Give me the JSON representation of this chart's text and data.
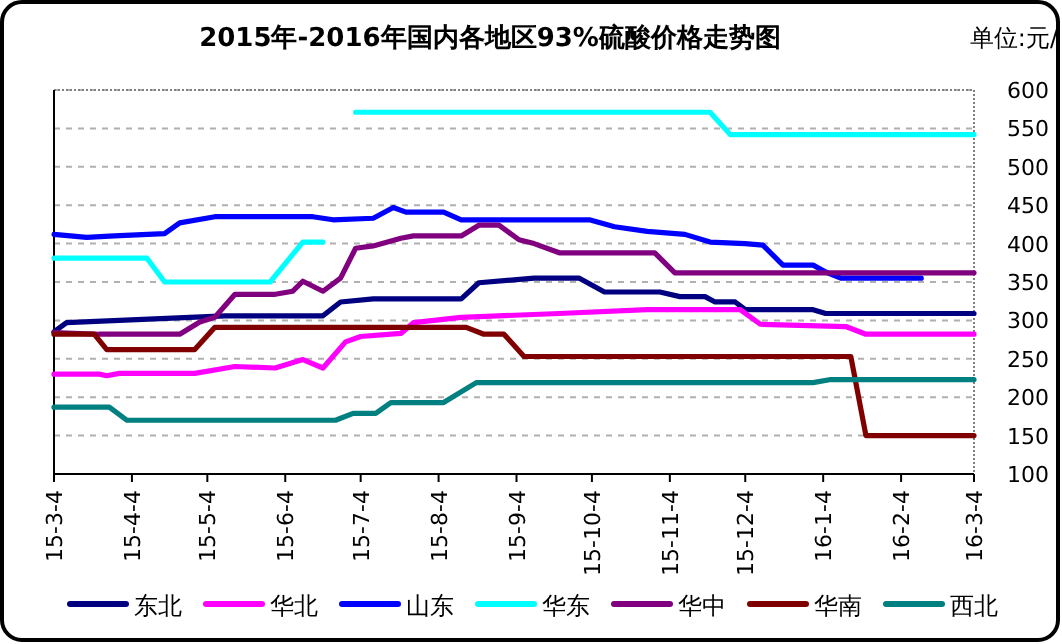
{
  "chart_data": {
    "type": "line",
    "title": "2015年-2016年国内各地区93%硫酸价格走势图",
    "annotations": [
      "单位:元/"
    ],
    "ylim": [
      100,
      600
    ],
    "yticks": [
      100,
      150,
      200,
      250,
      300,
      350,
      400,
      450,
      500,
      550,
      600
    ],
    "xlim": [
      "2015-03-04",
      "2016-03-04"
    ],
    "xticks": [
      {
        "value": "2015-03-04",
        "label": "15-3-4"
      },
      {
        "value": "2015-04-04",
        "label": "15-4-4"
      },
      {
        "value": "2015-05-04",
        "label": "15-5-4"
      },
      {
        "value": "2015-06-04",
        "label": "15-6-4"
      },
      {
        "value": "2015-07-04",
        "label": "15-7-4"
      },
      {
        "value": "2015-08-04",
        "label": "15-8-4"
      },
      {
        "value": "2015-09-04",
        "label": "15-9-4"
      },
      {
        "value": "2015-10-04",
        "label": "15-10-4"
      },
      {
        "value": "2015-11-04",
        "label": "15-11-4"
      },
      {
        "value": "2015-12-04",
        "label": "15-12-4"
      },
      {
        "value": "2016-01-04",
        "label": "16-1-4"
      },
      {
        "value": "2016-02-04",
        "label": "16-2-4"
      },
      {
        "value": "2016-03-04",
        "label": "16-3-4"
      }
    ],
    "grid": "y",
    "legend": "bottom",
    "marker": "none",
    "line_style": "solid",
    "series": [
      {
        "name": "东北",
        "color": "#000080",
        "x": [
          "2015-03-04",
          "2015-03-09",
          "2015-05-11",
          "2015-06-19",
          "2015-06-26",
          "2015-07-09",
          "2015-08-13",
          "2015-08-20",
          "2015-09-11",
          "2015-09-29",
          "2015-10-09",
          "2015-10-31",
          "2015-11-08",
          "2015-11-18",
          "2015-11-22",
          "2015-11-30",
          "2015-12-04",
          "2015-12-31",
          "2016-01-05",
          "2016-03-04"
        ],
        "values": [
          285,
          297,
          306,
          306,
          324,
          328,
          328,
          349,
          355,
          355,
          337,
          337,
          331,
          331,
          324,
          324,
          314,
          314,
          309,
          309
        ]
      },
      {
        "name": "华北",
        "color": "#ff00ff",
        "x": [
          "2015-03-04",
          "2015-03-22",
          "2015-03-25",
          "2015-03-30",
          "2015-04-29",
          "2015-05-15",
          "2015-05-31",
          "2015-06-11",
          "2015-06-19",
          "2015-06-28",
          "2015-07-04",
          "2015-07-20",
          "2015-07-25",
          "2015-08-13",
          "2015-09-21",
          "2015-10-26",
          "2015-12-02",
          "2015-12-10",
          "2016-01-13",
          "2016-01-21",
          "2016-03-04"
        ],
        "values": [
          230,
          230,
          228,
          231,
          231,
          240,
          238,
          249,
          238,
          272,
          279,
          283,
          297,
          304,
          309,
          314,
          314,
          295,
          292,
          282,
          282
        ]
      },
      {
        "name": "山东",
        "color": "#0000ff",
        "x": [
          "2015-03-04",
          "2015-03-17",
          "2015-03-28",
          "2015-04-17",
          "2015-04-23",
          "2015-05-07",
          "2015-06-15",
          "2015-06-23",
          "2015-07-09",
          "2015-07-17",
          "2015-07-22",
          "2015-08-06",
          "2015-08-13",
          "2015-10-03",
          "2015-10-13",
          "2015-10-26",
          "2015-11-10",
          "2015-11-20",
          "2015-12-04",
          "2015-12-11",
          "2015-12-19",
          "2015-12-31",
          "2016-01-05",
          "2016-01-11",
          "2016-02-12"
        ],
        "values": [
          412,
          408,
          410,
          413,
          427,
          435,
          435,
          431,
          433,
          447,
          441,
          441,
          431,
          431,
          422,
          416,
          412,
          402,
          400,
          398,
          372,
          372,
          363,
          355,
          355
        ]
      },
      {
        "name": "华东",
        "color": "#00ffff",
        "x": [
          "2015-03-04",
          "2015-04-10",
          "2015-04-17",
          "2015-05-29",
          "2015-06-11",
          "2015-06-19",
          "2015-06-26",
          "2015-07-02",
          "2015-11-20",
          "2015-11-28",
          "2016-03-04"
        ],
        "values": [
          381,
          381,
          350,
          350,
          402,
          402,
          null,
          571,
          571,
          542,
          542
        ]
      },
      {
        "name": "华中",
        "color": "#800080",
        "x": [
          "2015-03-04",
          "2015-03-22",
          "2015-04-23",
          "2015-05-01",
          "2015-05-07",
          "2015-05-15",
          "2015-05-31",
          "2015-06-07",
          "2015-06-11",
          "2015-06-19",
          "2015-06-26",
          "2015-07-02",
          "2015-07-09",
          "2015-07-20",
          "2015-07-25",
          "2015-08-13",
          "2015-08-20",
          "2015-08-28",
          "2015-09-05",
          "2015-09-11",
          "2015-09-21",
          "2015-10-29",
          "2015-11-06",
          "2016-03-04"
        ],
        "values": [
          284,
          282,
          282,
          298,
          304,
          334,
          334,
          338,
          351,
          338,
          355,
          394,
          397,
          407,
          410,
          410,
          424,
          424,
          405,
          400,
          388,
          388,
          362,
          362
        ]
      },
      {
        "name": "华南",
        "color": "#800000",
        "x": [
          "2015-03-04",
          "2015-03-20",
          "2015-03-25",
          "2015-04-29",
          "2015-05-07",
          "2015-08-15",
          "2015-08-22",
          "2015-08-30",
          "2015-09-07",
          "2016-01-15",
          "2016-01-21",
          "2016-03-04"
        ],
        "values": [
          282,
          282,
          262,
          262,
          291,
          291,
          282,
          282,
          253,
          253,
          150,
          150
        ]
      },
      {
        "name": "西北",
        "color": "#008080",
        "x": [
          "2015-03-04",
          "2015-03-26",
          "2015-04-02",
          "2015-06-24",
          "2015-07-01",
          "2015-07-10",
          "2015-07-16",
          "2015-08-06",
          "2015-08-19",
          "2015-12-31",
          "2016-01-07",
          "2016-03-04"
        ],
        "values": [
          187,
          187,
          170,
          170,
          179,
          179,
          193,
          193,
          219,
          219,
          223,
          223
        ]
      }
    ]
  }
}
